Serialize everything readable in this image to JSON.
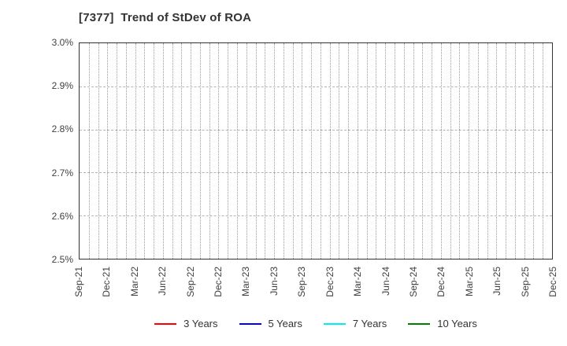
{
  "window": {
    "background_color": "#ffffff"
  },
  "chart_data": {
    "type": "line",
    "title": "[7377]  Trend of StDev of ROA",
    "title_align": "left",
    "xlabel": "",
    "ylabel": "",
    "ylim": [
      2.5,
      3.0
    ],
    "y_tick_labels": [
      "3.0%",
      "2.9%",
      "2.8%",
      "2.7%",
      "2.6%",
      "2.5%"
    ],
    "x_tick_labels": [
      "Sep-21",
      "Dec-21",
      "Mar-22",
      "Jun-22",
      "Sep-22",
      "Dec-22",
      "Mar-23",
      "Jun-23",
      "Sep-23",
      "Dec-23",
      "Mar-24",
      "Jun-24",
      "Sep-24",
      "Dec-24",
      "Mar-25",
      "Jun-25",
      "Sep-25",
      "Dec-25"
    ],
    "months_per_major_tick": 3,
    "minor_vertical_grid": "monthly",
    "grid": true,
    "legend_position": "bottom-center",
    "series": [
      {
        "name": "3 Years",
        "color": "#ff0000",
        "values": []
      },
      {
        "name": "5 Years",
        "color": "#0000ff",
        "values": []
      },
      {
        "name": "7 Years",
        "color": "#00eeee",
        "values": []
      },
      {
        "name": "10 Years",
        "color": "#008000",
        "values": []
      }
    ],
    "colors": {
      "plot_border": "#333333",
      "vertical_gridline": "#999999",
      "horizontal_gridline": "#b3b3b3",
      "title_text": "#333333",
      "tick_text": "#404040",
      "legend_text": "#333333"
    }
  }
}
